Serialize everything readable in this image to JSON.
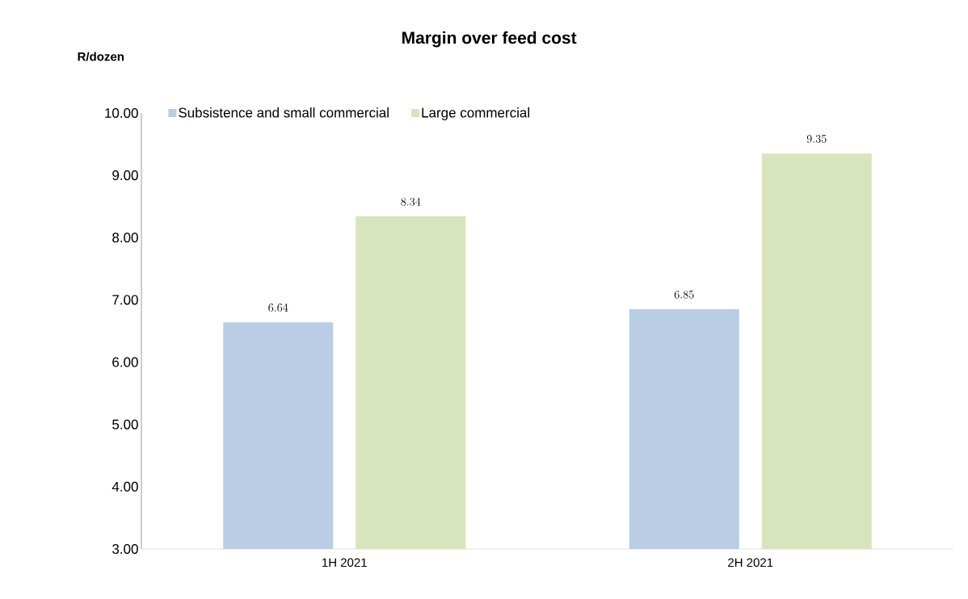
{
  "chart_data": {
    "type": "bar",
    "title": "Margin over feed cost",
    "ylabel": "R/dozen",
    "categories": [
      "1H 2021",
      "2H 2021"
    ],
    "series": [
      {
        "name": "Subsistence and small commercial",
        "color": "#b9cde5",
        "values": [
          6.64,
          6.85
        ]
      },
      {
        "name": "Large commercial",
        "color": "#d7e4bd",
        "values": [
          8.34,
          9.35
        ]
      }
    ],
    "ylim": [
      3,
      10
    ],
    "yticks": [
      {
        "value": 3,
        "label": "3.00"
      },
      {
        "value": 4,
        "label": "4.00"
      },
      {
        "value": 5,
        "label": "5.00"
      },
      {
        "value": 6,
        "label": "6.00"
      },
      {
        "value": 7,
        "label": "7.00"
      },
      {
        "value": 8,
        "label": "8.00"
      },
      {
        "value": 9,
        "label": "9.00"
      },
      {
        "value": 10,
        "label": "10.00"
      }
    ],
    "data_labels": true,
    "legend": "top left"
  }
}
